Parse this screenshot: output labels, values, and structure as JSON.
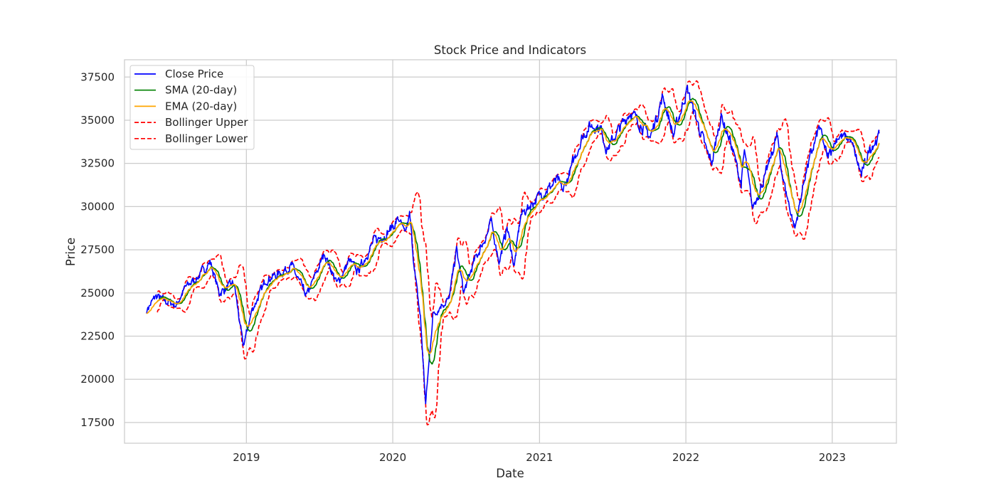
{
  "chart_data": {
    "type": "line",
    "title": "Stock Price and Indicators",
    "xlabel": "Date",
    "ylabel": "Price",
    "xlim": [
      "2018-03-03",
      "2023-06-10"
    ],
    "ylim": [
      16300,
      38500
    ],
    "grid": true,
    "legend_position": "upper-left",
    "x_ticks": [
      {
        "date": "2019-01-01",
        "label": "2019"
      },
      {
        "date": "2020-01-01",
        "label": "2020"
      },
      {
        "date": "2021-01-01",
        "label": "2021"
      },
      {
        "date": "2022-01-01",
        "label": "2022"
      },
      {
        "date": "2023-01-01",
        "label": "2023"
      }
    ],
    "y_ticks": [
      17500,
      20000,
      22500,
      25000,
      27500,
      30000,
      32500,
      35000,
      37500
    ],
    "y_tick_labels": [
      "17500",
      "20000",
      "22500",
      "25000",
      "27500",
      "30000",
      "32500",
      "35000",
      "37500"
    ],
    "series": [
      {
        "name": "Close Price",
        "color": "#0000ff",
        "style": "solid"
      },
      {
        "name": "SMA (20-day)",
        "color": "#008000",
        "style": "solid"
      },
      {
        "name": "EMA (20-day)",
        "color": "#ffa500",
        "style": "solid"
      },
      {
        "name": "Bollinger Upper",
        "color": "#ff0000",
        "style": "dashed"
      },
      {
        "name": "Bollinger Lower",
        "color": "#ff0000",
        "style": "dashed"
      }
    ],
    "date_start": "2018-04-27",
    "date_end": "2023-04-28",
    "close_price_key_points": [
      [
        "2018-04-27",
        24000
      ],
      [
        "2018-05-20",
        24800
      ],
      [
        "2018-06-15",
        24500
      ],
      [
        "2018-07-10",
        24300
      ],
      [
        "2018-08-01",
        25300
      ],
      [
        "2018-09-01",
        25900
      ],
      [
        "2018-10-03",
        26800
      ],
      [
        "2018-10-25",
        25000
      ],
      [
        "2018-11-15",
        25300
      ],
      [
        "2018-12-01",
        25600
      ],
      [
        "2018-12-24",
        21900
      ],
      [
        "2019-01-15",
        24000
      ],
      [
        "2019-02-20",
        25800
      ],
      [
        "2019-04-01",
        26200
      ],
      [
        "2019-04-23",
        26600
      ],
      [
        "2019-05-31",
        24800
      ],
      [
        "2019-07-15",
        27300
      ],
      [
        "2019-08-15",
        25500
      ],
      [
        "2019-09-15",
        26900
      ],
      [
        "2019-10-05",
        26200
      ],
      [
        "2019-11-15",
        28000
      ],
      [
        "2019-12-15",
        28400
      ],
      [
        "2020-01-17",
        29300
      ],
      [
        "2020-01-31",
        28300
      ],
      [
        "2020-02-12",
        29500
      ],
      [
        "2020-02-27",
        25700
      ],
      [
        "2020-03-10",
        23600
      ],
      [
        "2020-03-23",
        18600
      ],
      [
        "2020-04-10",
        23700
      ],
      [
        "2020-04-30",
        24300
      ],
      [
        "2020-05-20",
        24600
      ],
      [
        "2020-06-08",
        27500
      ],
      [
        "2020-06-26",
        25000
      ],
      [
        "2020-07-20",
        26700
      ],
      [
        "2020-08-25",
        28500
      ],
      [
        "2020-09-02",
        29100
      ],
      [
        "2020-09-23",
        26800
      ],
      [
        "2020-10-12",
        28800
      ],
      [
        "2020-10-30",
        26500
      ],
      [
        "2020-11-15",
        29500
      ],
      [
        "2020-12-31",
        30600
      ],
      [
        "2021-02-15",
        31500
      ],
      [
        "2021-03-01",
        30900
      ],
      [
        "2021-04-15",
        33900
      ],
      [
        "2021-05-07",
        34700
      ],
      [
        "2021-06-01",
        34600
      ],
      [
        "2021-06-18",
        33300
      ],
      [
        "2021-08-15",
        35500
      ],
      [
        "2021-09-15",
        34600
      ],
      [
        "2021-10-04",
        34000
      ],
      [
        "2021-11-05",
        36400
      ],
      [
        "2021-12-01",
        34100
      ],
      [
        "2022-01-04",
        36800
      ],
      [
        "2022-02-23",
        33100
      ],
      [
        "2022-03-08",
        32600
      ],
      [
        "2022-03-29",
        35300
      ],
      [
        "2022-04-22",
        33800
      ],
      [
        "2022-05-19",
        31300
      ],
      [
        "2022-05-27",
        33200
      ],
      [
        "2022-06-16",
        29900
      ],
      [
        "2022-07-20",
        31900
      ],
      [
        "2022-08-16",
        34100
      ],
      [
        "2022-09-01",
        31500
      ],
      [
        "2022-09-30",
        28700
      ],
      [
        "2022-10-25",
        31800
      ],
      [
        "2022-11-30",
        34600
      ],
      [
        "2022-12-20",
        32800
      ],
      [
        "2023-01-15",
        34100
      ],
      [
        "2023-02-15",
        33900
      ],
      [
        "2023-03-15",
        31800
      ],
      [
        "2023-04-05",
        33400
      ],
      [
        "2023-04-28",
        34100
      ]
    ]
  }
}
